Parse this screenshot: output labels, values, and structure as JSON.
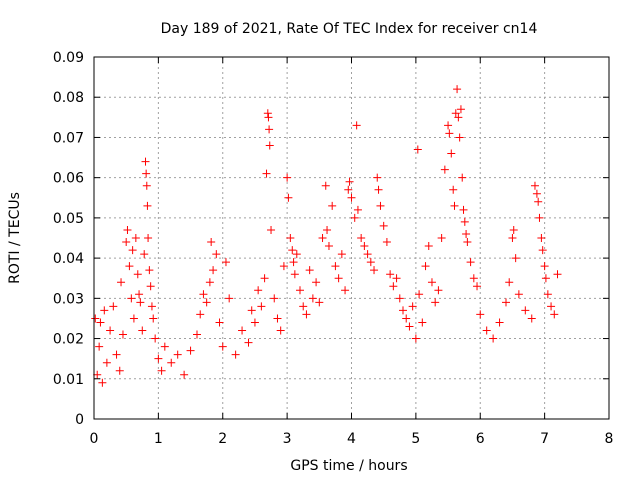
{
  "chart_data": {
    "type": "scatter",
    "title": "Day 189 of 2021, Rate Of TEC Index for receiver cn14",
    "xlabel": "GPS time / hours",
    "ylabel": "ROTI / TECUs",
    "xlim": [
      0,
      8
    ],
    "ylim": [
      0,
      0.09
    ],
    "grid": true,
    "marker": "+",
    "color": "#ff0000",
    "x_ticks": [
      {
        "value": 0,
        "label": "0"
      },
      {
        "value": 1,
        "label": "1"
      },
      {
        "value": 2,
        "label": "2"
      },
      {
        "value": 3,
        "label": "3"
      },
      {
        "value": 4,
        "label": "4"
      },
      {
        "value": 5,
        "label": "5"
      },
      {
        "value": 6,
        "label": "6"
      },
      {
        "value": 7,
        "label": "7"
      },
      {
        "value": 8,
        "label": "8"
      }
    ],
    "y_ticks": [
      {
        "value": 0,
        "label": "0"
      },
      {
        "value": 0.01,
        "label": "0.01"
      },
      {
        "value": 0.02,
        "label": "0.02"
      },
      {
        "value": 0.03,
        "label": "0.03"
      },
      {
        "value": 0.04,
        "label": "0.04"
      },
      {
        "value": 0.05,
        "label": "0.05"
      },
      {
        "value": 0.06,
        "label": "0.06"
      },
      {
        "value": 0.07,
        "label": "0.07"
      },
      {
        "value": 0.08,
        "label": "0.08"
      },
      {
        "value": 0.09,
        "label": "0.09"
      }
    ],
    "series": [
      {
        "name": "ROTI",
        "points": [
          [
            0.02,
            0.025
          ],
          [
            0.05,
            0.011
          ],
          [
            0.08,
            0.018
          ],
          [
            0.1,
            0.024
          ],
          [
            0.13,
            0.009
          ],
          [
            0.16,
            0.027
          ],
          [
            0.2,
            0.014
          ],
          [
            0.25,
            0.022
          ],
          [
            0.3,
            0.028
          ],
          [
            0.35,
            0.016
          ],
          [
            0.4,
            0.012
          ],
          [
            0.42,
            0.034
          ],
          [
            0.45,
            0.021
          ],
          [
            0.5,
            0.044
          ],
          [
            0.52,
            0.047
          ],
          [
            0.55,
            0.038
          ],
          [
            0.58,
            0.03
          ],
          [
            0.6,
            0.042
          ],
          [
            0.62,
            0.025
          ],
          [
            0.65,
            0.045
          ],
          [
            0.68,
            0.036
          ],
          [
            0.7,
            0.031
          ],
          [
            0.72,
            0.029
          ],
          [
            0.75,
            0.022
          ],
          [
            0.78,
            0.041
          ],
          [
            0.8,
            0.064
          ],
          [
            0.81,
            0.061
          ],
          [
            0.82,
            0.058
          ],
          [
            0.83,
            0.053
          ],
          [
            0.84,
            0.045
          ],
          [
            0.86,
            0.037
          ],
          [
            0.88,
            0.033
          ],
          [
            0.9,
            0.028
          ],
          [
            0.92,
            0.025
          ],
          [
            0.95,
            0.02
          ],
          [
            1.0,
            0.015
          ],
          [
            1.05,
            0.012
          ],
          [
            1.1,
            0.018
          ],
          [
            1.2,
            0.014
          ],
          [
            1.3,
            0.016
          ],
          [
            1.4,
            0.011
          ],
          [
            1.5,
            0.017
          ],
          [
            1.6,
            0.021
          ],
          [
            1.65,
            0.026
          ],
          [
            1.7,
            0.031
          ],
          [
            1.75,
            0.029
          ],
          [
            1.8,
            0.034
          ],
          [
            1.82,
            0.044
          ],
          [
            1.85,
            0.037
          ],
          [
            1.9,
            0.041
          ],
          [
            1.95,
            0.024
          ],
          [
            2.0,
            0.018
          ],
          [
            2.05,
            0.039
          ],
          [
            2.1,
            0.03
          ],
          [
            2.2,
            0.016
          ],
          [
            2.3,
            0.022
          ],
          [
            2.4,
            0.019
          ],
          [
            2.45,
            0.027
          ],
          [
            2.5,
            0.024
          ],
          [
            2.55,
            0.032
          ],
          [
            2.6,
            0.028
          ],
          [
            2.65,
            0.035
          ],
          [
            2.68,
            0.061
          ],
          [
            2.7,
            0.076
          ],
          [
            2.71,
            0.075
          ],
          [
            2.72,
            0.072
          ],
          [
            2.73,
            0.068
          ],
          [
            2.75,
            0.047
          ],
          [
            2.8,
            0.03
          ],
          [
            2.85,
            0.025
          ],
          [
            2.9,
            0.022
          ],
          [
            2.95,
            0.038
          ],
          [
            3.0,
            0.06
          ],
          [
            3.02,
            0.055
          ],
          [
            3.05,
            0.045
          ],
          [
            3.08,
            0.042
          ],
          [
            3.1,
            0.039
          ],
          [
            3.12,
            0.036
          ],
          [
            3.15,
            0.041
          ],
          [
            3.2,
            0.032
          ],
          [
            3.25,
            0.028
          ],
          [
            3.3,
            0.026
          ],
          [
            3.35,
            0.037
          ],
          [
            3.4,
            0.03
          ],
          [
            3.45,
            0.034
          ],
          [
            3.5,
            0.029
          ],
          [
            3.55,
            0.045
          ],
          [
            3.6,
            0.058
          ],
          [
            3.62,
            0.047
          ],
          [
            3.65,
            0.043
          ],
          [
            3.7,
            0.053
          ],
          [
            3.75,
            0.038
          ],
          [
            3.8,
            0.035
          ],
          [
            3.85,
            0.041
          ],
          [
            3.9,
            0.032
          ],
          [
            3.95,
            0.057
          ],
          [
            3.97,
            0.059
          ],
          [
            4.0,
            0.055
          ],
          [
            4.05,
            0.05
          ],
          [
            4.08,
            0.073
          ],
          [
            4.1,
            0.052
          ],
          [
            4.15,
            0.045
          ],
          [
            4.2,
            0.043
          ],
          [
            4.25,
            0.041
          ],
          [
            4.3,
            0.039
          ],
          [
            4.35,
            0.037
          ],
          [
            4.4,
            0.06
          ],
          [
            4.42,
            0.057
          ],
          [
            4.45,
            0.053
          ],
          [
            4.5,
            0.048
          ],
          [
            4.55,
            0.044
          ],
          [
            4.6,
            0.036
          ],
          [
            4.65,
            0.033
          ],
          [
            4.7,
            0.035
          ],
          [
            4.75,
            0.03
          ],
          [
            4.8,
            0.027
          ],
          [
            4.85,
            0.025
          ],
          [
            4.9,
            0.023
          ],
          [
            4.95,
            0.028
          ],
          [
            5.0,
            0.02
          ],
          [
            5.03,
            0.067
          ],
          [
            5.05,
            0.031
          ],
          [
            5.1,
            0.024
          ],
          [
            5.15,
            0.038
          ],
          [
            5.2,
            0.043
          ],
          [
            5.25,
            0.034
          ],
          [
            5.3,
            0.029
          ],
          [
            5.35,
            0.032
          ],
          [
            5.4,
            0.045
          ],
          [
            5.45,
            0.062
          ],
          [
            5.5,
            0.073
          ],
          [
            5.52,
            0.071
          ],
          [
            5.55,
            0.066
          ],
          [
            5.58,
            0.057
          ],
          [
            5.6,
            0.053
          ],
          [
            5.62,
            0.076
          ],
          [
            5.64,
            0.082
          ],
          [
            5.66,
            0.075
          ],
          [
            5.68,
            0.07
          ],
          [
            5.7,
            0.077
          ],
          [
            5.72,
            0.06
          ],
          [
            5.74,
            0.052
          ],
          [
            5.76,
            0.049
          ],
          [
            5.78,
            0.046
          ],
          [
            5.8,
            0.044
          ],
          [
            5.85,
            0.039
          ],
          [
            5.9,
            0.035
          ],
          [
            5.95,
            0.033
          ],
          [
            6.0,
            0.026
          ],
          [
            6.1,
            0.022
          ],
          [
            6.2,
            0.02
          ],
          [
            6.3,
            0.024
          ],
          [
            6.4,
            0.029
          ],
          [
            6.45,
            0.034
          ],
          [
            6.5,
            0.045
          ],
          [
            6.52,
            0.047
          ],
          [
            6.55,
            0.04
          ],
          [
            6.6,
            0.031
          ],
          [
            6.7,
            0.027
          ],
          [
            6.8,
            0.025
          ],
          [
            6.85,
            0.058
          ],
          [
            6.88,
            0.056
          ],
          [
            6.9,
            0.054
          ],
          [
            6.92,
            0.05
          ],
          [
            6.95,
            0.045
          ],
          [
            6.97,
            0.042
          ],
          [
            7.0,
            0.038
          ],
          [
            7.02,
            0.035
          ],
          [
            7.05,
            0.031
          ],
          [
            7.1,
            0.028
          ],
          [
            7.15,
            0.026
          ],
          [
            7.2,
            0.036
          ]
        ]
      }
    ]
  }
}
